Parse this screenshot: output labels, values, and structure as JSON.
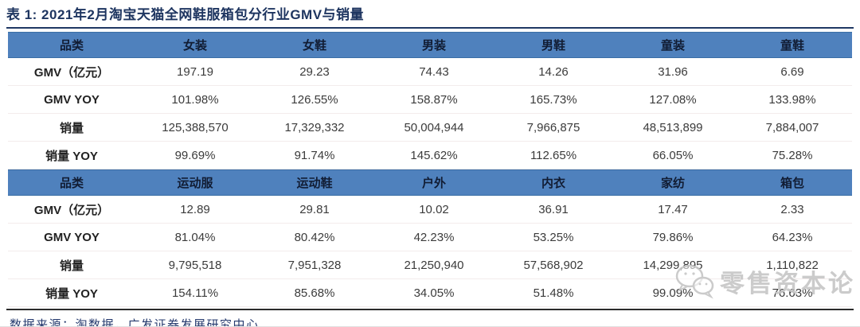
{
  "title": "表 1:  2021年2月淘宝天猫全网鞋服箱包分行业GMV与销量",
  "table": {
    "sections": [
      {
        "headers": [
          "品类",
          "女装",
          "女鞋",
          "男装",
          "男鞋",
          "童装",
          "童鞋"
        ],
        "rows": [
          {
            "label": "GMV（亿元）",
            "values": [
              "197.19",
              "29.23",
              "74.43",
              "14.26",
              "31.96",
              "6.69"
            ]
          },
          {
            "label": "GMV YOY",
            "values": [
              "101.98%",
              "126.55%",
              "158.87%",
              "165.73%",
              "127.08%",
              "133.98%"
            ]
          },
          {
            "label": "销量",
            "values": [
              "125,388,570",
              "17,329,332",
              "50,004,944",
              "7,966,875",
              "48,513,899",
              "7,884,007"
            ]
          },
          {
            "label": "销量 YOY",
            "values": [
              "99.69%",
              "91.74%",
              "145.62%",
              "112.65%",
              "66.05%",
              "75.28%"
            ]
          }
        ]
      },
      {
        "headers": [
          "品类",
          "运动服",
          "运动鞋",
          "户外",
          "内衣",
          "家纺",
          "箱包"
        ],
        "rows": [
          {
            "label": "GMV（亿元）",
            "values": [
              "12.89",
              "29.81",
              "10.02",
              "36.91",
              "17.47",
              "2.33"
            ]
          },
          {
            "label": "GMV YOY",
            "values": [
              "81.04%",
              "80.42%",
              "42.23%",
              "53.25%",
              "79.86%",
              "64.23%"
            ]
          },
          {
            "label": "销量",
            "values": [
              "9,795,518",
              "7,951,328",
              "21,250,940",
              "57,568,902",
              "14,299,895",
              "1,110,822"
            ]
          },
          {
            "label": "销量 YOY",
            "values": [
              "154.11%",
              "85.68%",
              "34.05%",
              "51.48%",
              "99.09%",
              "76.63%"
            ]
          }
        ]
      }
    ]
  },
  "footer": {
    "source": "数据来源：淘数据，广发证券发展研究中心"
  },
  "watermark": {
    "text": "零售资本论",
    "icon": "wechat-bubbles-icon"
  },
  "colors": {
    "header_bg": "#4f81bd",
    "header_text": "#111c33",
    "title_text": "#1e3560",
    "title_rule": "#1f3864",
    "footer_rule": "#2b2b2b",
    "source_text": "#253a6e",
    "watermark": "#c6c6c6"
  }
}
